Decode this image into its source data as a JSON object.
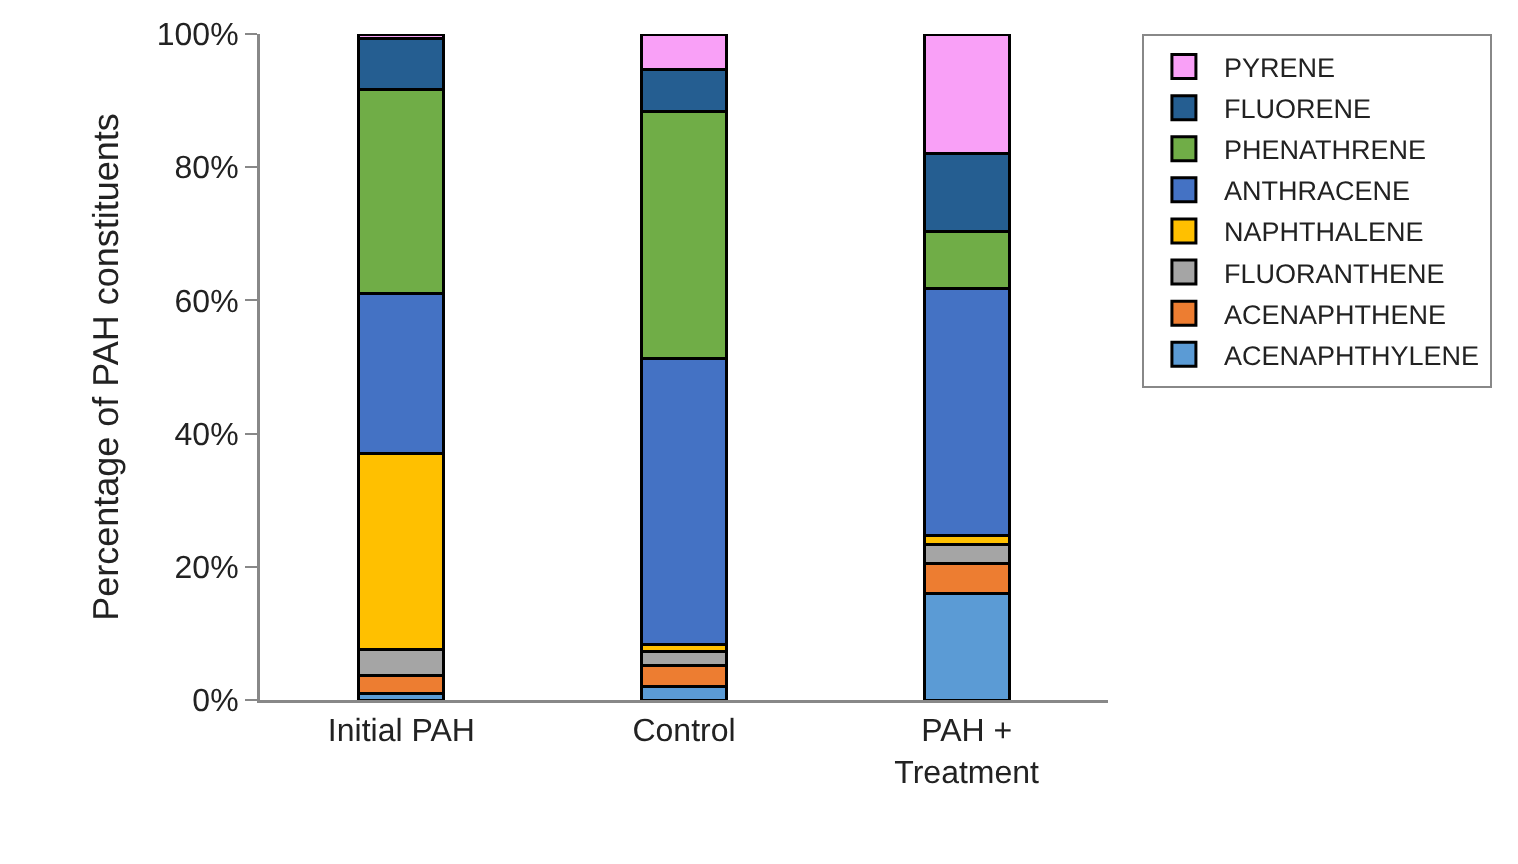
{
  "chart_data": {
    "type": "bar",
    "stacked": true,
    "ylabel": "Percentage of PAH constituents",
    "categories": [
      "Initial PAH",
      "Control",
      "PAH + Treatment"
    ],
    "series": [
      {
        "name": "ACENAPHTHYLENE",
        "color": "#5b9bd5",
        "values": [
          1,
          2,
          16
        ]
      },
      {
        "name": "ACENAPHTHENE",
        "color": "#ed7d31",
        "values": [
          2.7,
          3.2,
          4.5
        ]
      },
      {
        "name": "FLUORANTHENE",
        "color": "#a5a5a5",
        "values": [
          3.9,
          2.1,
          2.9
        ]
      },
      {
        "name": "NAPHTHALENE",
        "color": "#ffc000",
        "values": [
          29.4,
          1,
          1.3
        ]
      },
      {
        "name": "ANTHRACENE",
        "color": "#4472c4",
        "values": [
          24,
          43,
          37.1
        ]
      },
      {
        "name": "PHENATHRENE",
        "color": "#70ad47",
        "values": [
          30.6,
          37,
          8.6
        ]
      },
      {
        "name": "FLUORENE",
        "color": "#255e91",
        "values": [
          7.7,
          6.3,
          11.7
        ]
      },
      {
        "name": "PYRENE",
        "color": "#f9a0f7",
        "values": [
          0.7,
          5.4,
          17.9
        ]
      }
    ],
    "ylim": [
      0,
      100
    ],
    "yticks": [
      {
        "value": 0,
        "label": "0%"
      },
      {
        "value": 20,
        "label": "20%"
      },
      {
        "value": 40,
        "label": "40%"
      },
      {
        "value": 60,
        "label": "60%"
      },
      {
        "value": 80,
        "label": "80%"
      },
      {
        "value": 100,
        "label": "100%"
      }
    ],
    "grid": false,
    "legend": "right"
  }
}
